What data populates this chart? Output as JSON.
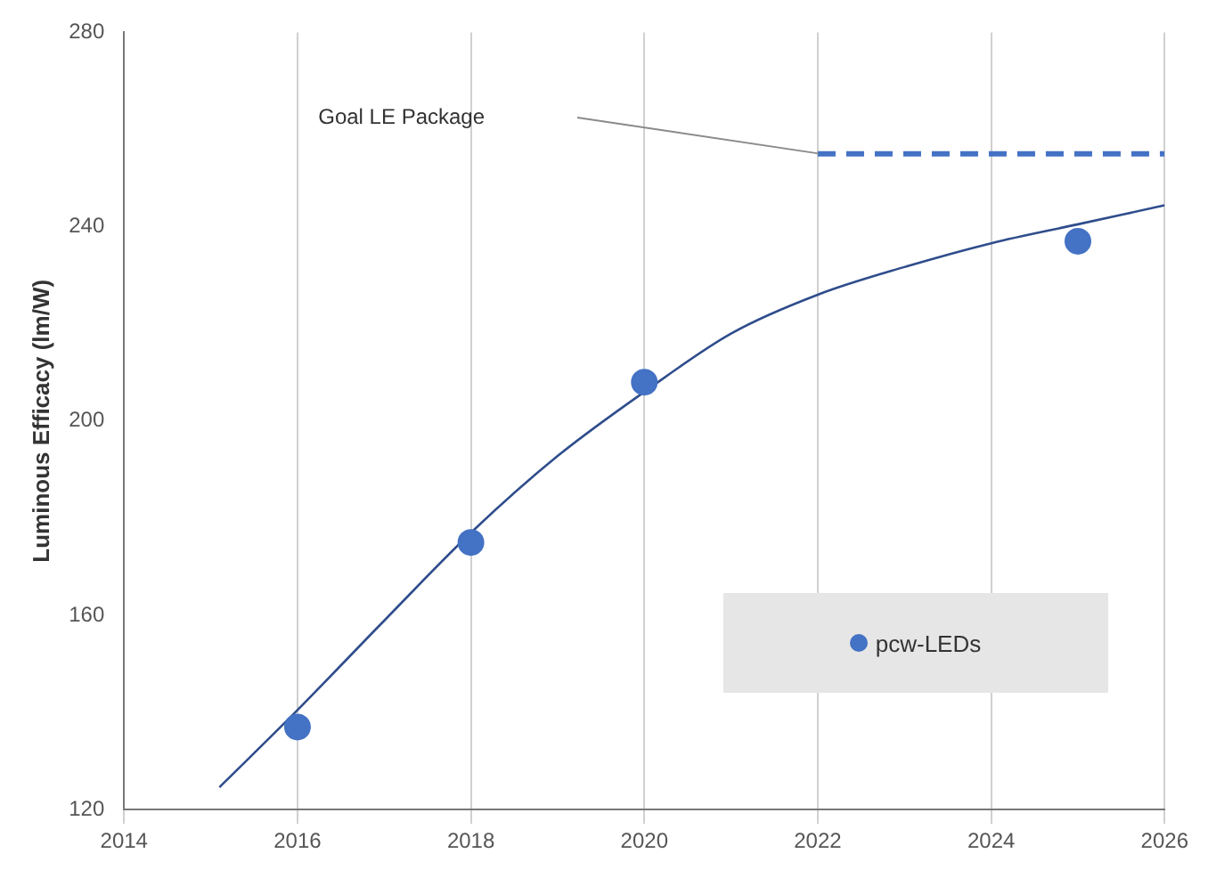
{
  "chart_data": {
    "type": "scatter",
    "ylabel": "Luminous Efficacy (lm/W)",
    "xlim": [
      2014,
      2026
    ],
    "xticks": [
      2014,
      2016,
      2018,
      2020,
      2022,
      2024,
      2026
    ],
    "ylim": [
      120,
      280
    ],
    "yticks": [
      120,
      160,
      200,
      240,
      280
    ],
    "grid": "x",
    "legend": "bottom right",
    "series": [
      {
        "name": "pcw-LEDs",
        "type": "scatter",
        "color": "#4472c4",
        "marker": "circle",
        "x": [
          2016,
          2018,
          2020,
          2025
        ],
        "values": [
          137,
          175,
          208,
          237
        ]
      },
      {
        "type": "line",
        "color": "#2f4d8c",
        "marker": "none",
        "x": [
          2015.1,
          2016,
          2017,
          2018,
          2019,
          2020,
          2021,
          2022,
          2023,
          2024,
          2025,
          2026
        ],
        "values": [
          124.6,
          140.5,
          158.9,
          177,
          192.8,
          206,
          218,
          226,
          231.7,
          236.6,
          240.5,
          244.4
        ]
      },
      {
        "type": "line",
        "color": "#4472c4",
        "marker": "none",
        "line_style": "dashed",
        "x": [
          2022,
          2026
        ],
        "values": [
          255,
          255
        ]
      }
    ],
    "annotations": [
      "Goal LE Package"
    ]
  }
}
